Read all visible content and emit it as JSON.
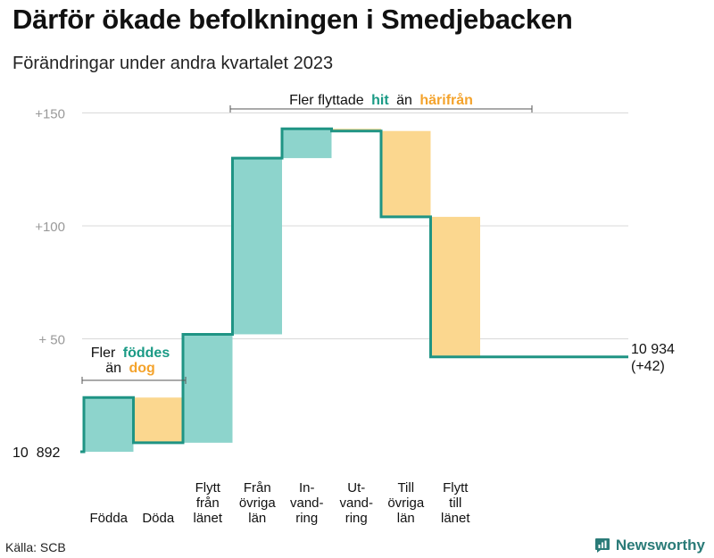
{
  "title": "Därför ökade befolkningen i Smedjebacken",
  "subtitle": "Förändringar under andra kvartalet 2023",
  "source": "Källa: SCB",
  "brand": {
    "name": "Newsworthy",
    "icon": "newsworthy-logo-icon"
  },
  "colors": {
    "increase": "#8dd4cc",
    "decrease": "#fbd78f",
    "line": "#1f9484",
    "highlight_green": "#1a9a85",
    "highlight_orange": "#f4a32c",
    "axis_text": "#999999",
    "grid": "#d9d9d9"
  },
  "annotations": {
    "migration": {
      "prefix": "Fler flyttade",
      "green": "hit",
      "mid": "än",
      "orange": "härifrån"
    },
    "natural": {
      "line1_prefix": "Fler",
      "line1_green": "föddes",
      "line2_prefix": "än",
      "line2_orange": "dog"
    }
  },
  "chart_data": {
    "type": "waterfall",
    "start": {
      "label": "10  892",
      "value": 10892
    },
    "end": {
      "label_line1": "10 934",
      "label_line2": "(+42)",
      "value": 10934,
      "change": 42
    },
    "y_ticks": [
      {
        "value": 50,
        "label": "+  50"
      },
      {
        "value": 100,
        "label": "+100"
      },
      {
        "value": 150,
        "label": "+150"
      }
    ],
    "ylim": [
      0,
      150
    ],
    "grid": true,
    "steps": [
      {
        "label": [
          "Födda"
        ],
        "change": 24,
        "direction": "increase"
      },
      {
        "label": [
          "Döda"
        ],
        "change": -20,
        "direction": "decrease"
      },
      {
        "label": [
          "Flytt",
          "från",
          "länet"
        ],
        "change": 48,
        "direction": "increase"
      },
      {
        "label": [
          "Från",
          "övriga",
          "län"
        ],
        "change": 78,
        "direction": "increase"
      },
      {
        "label": [
          "In-",
          "vand-",
          "ring"
        ],
        "change": 13,
        "direction": "increase"
      },
      {
        "label": [
          "Ut-",
          "vand-",
          "ring"
        ],
        "change": -1,
        "direction": "decrease"
      },
      {
        "label": [
          "Till",
          "övriga",
          "län"
        ],
        "change": -38,
        "direction": "decrease"
      },
      {
        "label": [
          "Flytt",
          "till",
          "länet"
        ],
        "change": -62,
        "direction": "decrease"
      }
    ]
  }
}
